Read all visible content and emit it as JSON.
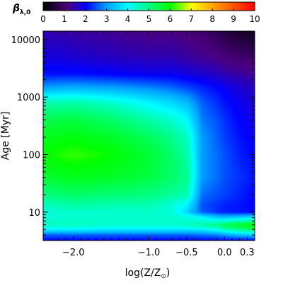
{
  "chart_data": {
    "type": "heatmap",
    "colorbar": {
      "label": "β",
      "label_sub": "λ,0",
      "range": [
        0,
        10
      ],
      "ticks": [
        "0",
        "1",
        "2",
        "3",
        "4",
        "5",
        "6",
        "7",
        "8",
        "9",
        "10"
      ],
      "colormap_stops": [
        {
          "v": 0,
          "color": "#000000"
        },
        {
          "v": 1.2,
          "color": "#4b0082"
        },
        {
          "v": 2,
          "color": "#0000ff"
        },
        {
          "v": 3,
          "color": "#00a0ff"
        },
        {
          "v": 4,
          "color": "#00ffff"
        },
        {
          "v": 5,
          "color": "#00ff80"
        },
        {
          "v": 6,
          "color": "#00ff00"
        },
        {
          "v": 7,
          "color": "#ffff00"
        },
        {
          "v": 8,
          "color": "#ffa500"
        },
        {
          "v": 10,
          "color": "#ff0000"
        }
      ]
    },
    "xlabel": "log(Z/Z",
    "xlabel_sub": "⊙",
    "xlabel_close": ")",
    "xlim": [
      -2.4,
      0.4
    ],
    "x_ticks": [
      {
        "v": -2.0,
        "label": "−2.0"
      },
      {
        "v": -1.0,
        "label": "−1.0"
      },
      {
        "v": -0.5,
        "label": "−0.5"
      },
      {
        "v": 0.0,
        "label": "0.0"
      },
      {
        "v": 0.3,
        "label": "0.3"
      }
    ],
    "ylabel": "Age [Myr]",
    "y_scale": "log",
    "ylim": [
      3.2,
      14000
    ],
    "y_ticks": [
      {
        "v": 10,
        "label": "10"
      },
      {
        "v": 100,
        "label": "100"
      },
      {
        "v": 1000,
        "label": "1000"
      },
      {
        "v": 10000,
        "label": "10000"
      }
    ],
    "grid": false,
    "x": [
      -2.4,
      -2.0,
      -1.5,
      -1.0,
      -0.7,
      -0.5,
      -0.3,
      -0.1,
      0.0,
      0.2,
      0.4
    ],
    "y": [
      3.2,
      4,
      5,
      6,
      8,
      10,
      13,
      20,
      40,
      100,
      200,
      400,
      800,
      1500,
      2500,
      5000,
      14000
    ],
    "z": [
      [
        2.0,
        2.0,
        2.0,
        2.0,
        2.0,
        2.0,
        2.0,
        2.0,
        2.0,
        2.0,
        2.0
      ],
      [
        2.6,
        2.6,
        2.6,
        2.6,
        2.6,
        2.6,
        2.7,
        2.8,
        3.0,
        3.3,
        3.5
      ],
      [
        3.9,
        3.9,
        3.8,
        3.8,
        3.8,
        3.8,
        3.9,
        4.2,
        4.6,
        5.0,
        5.3
      ],
      [
        4.5,
        4.5,
        4.4,
        4.4,
        4.4,
        4.5,
        4.7,
        5.0,
        5.4,
        5.7,
        6.0
      ],
      [
        4.3,
        4.4,
        4.4,
        4.4,
        4.4,
        4.3,
        4.0,
        3.5,
        3.4,
        3.6,
        3.8
      ],
      [
        4.3,
        4.4,
        4.4,
        4.4,
        4.3,
        3.6,
        2.6,
        2.3,
        2.2,
        2.1,
        2.0
      ],
      [
        4.5,
        4.7,
        4.6,
        4.6,
        4.3,
        3.9,
        2.5,
        2.3,
        2.2,
        2.1,
        2.0
      ],
      [
        5.0,
        5.2,
        5.1,
        5.0,
        4.8,
        4.6,
        2.7,
        2.5,
        2.4,
        2.2,
        2.0
      ],
      [
        5.6,
        5.8,
        5.7,
        5.5,
        5.2,
        4.9,
        3.0,
        2.7,
        2.5,
        2.3,
        2.1
      ],
      [
        6.0,
        6.2,
        6.0,
        5.6,
        5.2,
        4.7,
        3.0,
        2.7,
        2.5,
        2.2,
        2.0
      ],
      [
        5.8,
        5.9,
        5.7,
        5.3,
        4.9,
        4.5,
        3.0,
        2.6,
        2.4,
        2.1,
        1.9
      ],
      [
        5.4,
        5.5,
        5.2,
        4.7,
        4.4,
        4.0,
        2.8,
        2.5,
        2.3,
        2.0,
        1.8
      ],
      [
        4.6,
        4.7,
        4.4,
        3.9,
        3.6,
        3.3,
        2.6,
        2.3,
        2.1,
        1.9,
        1.7
      ],
      [
        3.0,
        3.1,
        3.0,
        2.8,
        2.6,
        2.4,
        2.2,
        2.0,
        1.9,
        1.7,
        1.6
      ],
      [
        2.1,
        2.1,
        2.0,
        1.9,
        1.9,
        1.8,
        1.7,
        1.6,
        1.5,
        1.4,
        1.3
      ],
      [
        1.8,
        1.7,
        1.6,
        1.5,
        1.5,
        1.4,
        1.3,
        1.2,
        1.1,
        1.0,
        0.9
      ],
      [
        1.5,
        1.4,
        1.3,
        1.2,
        1.2,
        1.1,
        1.0,
        0.8,
        0.6,
        0.4,
        0.3
      ]
    ]
  }
}
